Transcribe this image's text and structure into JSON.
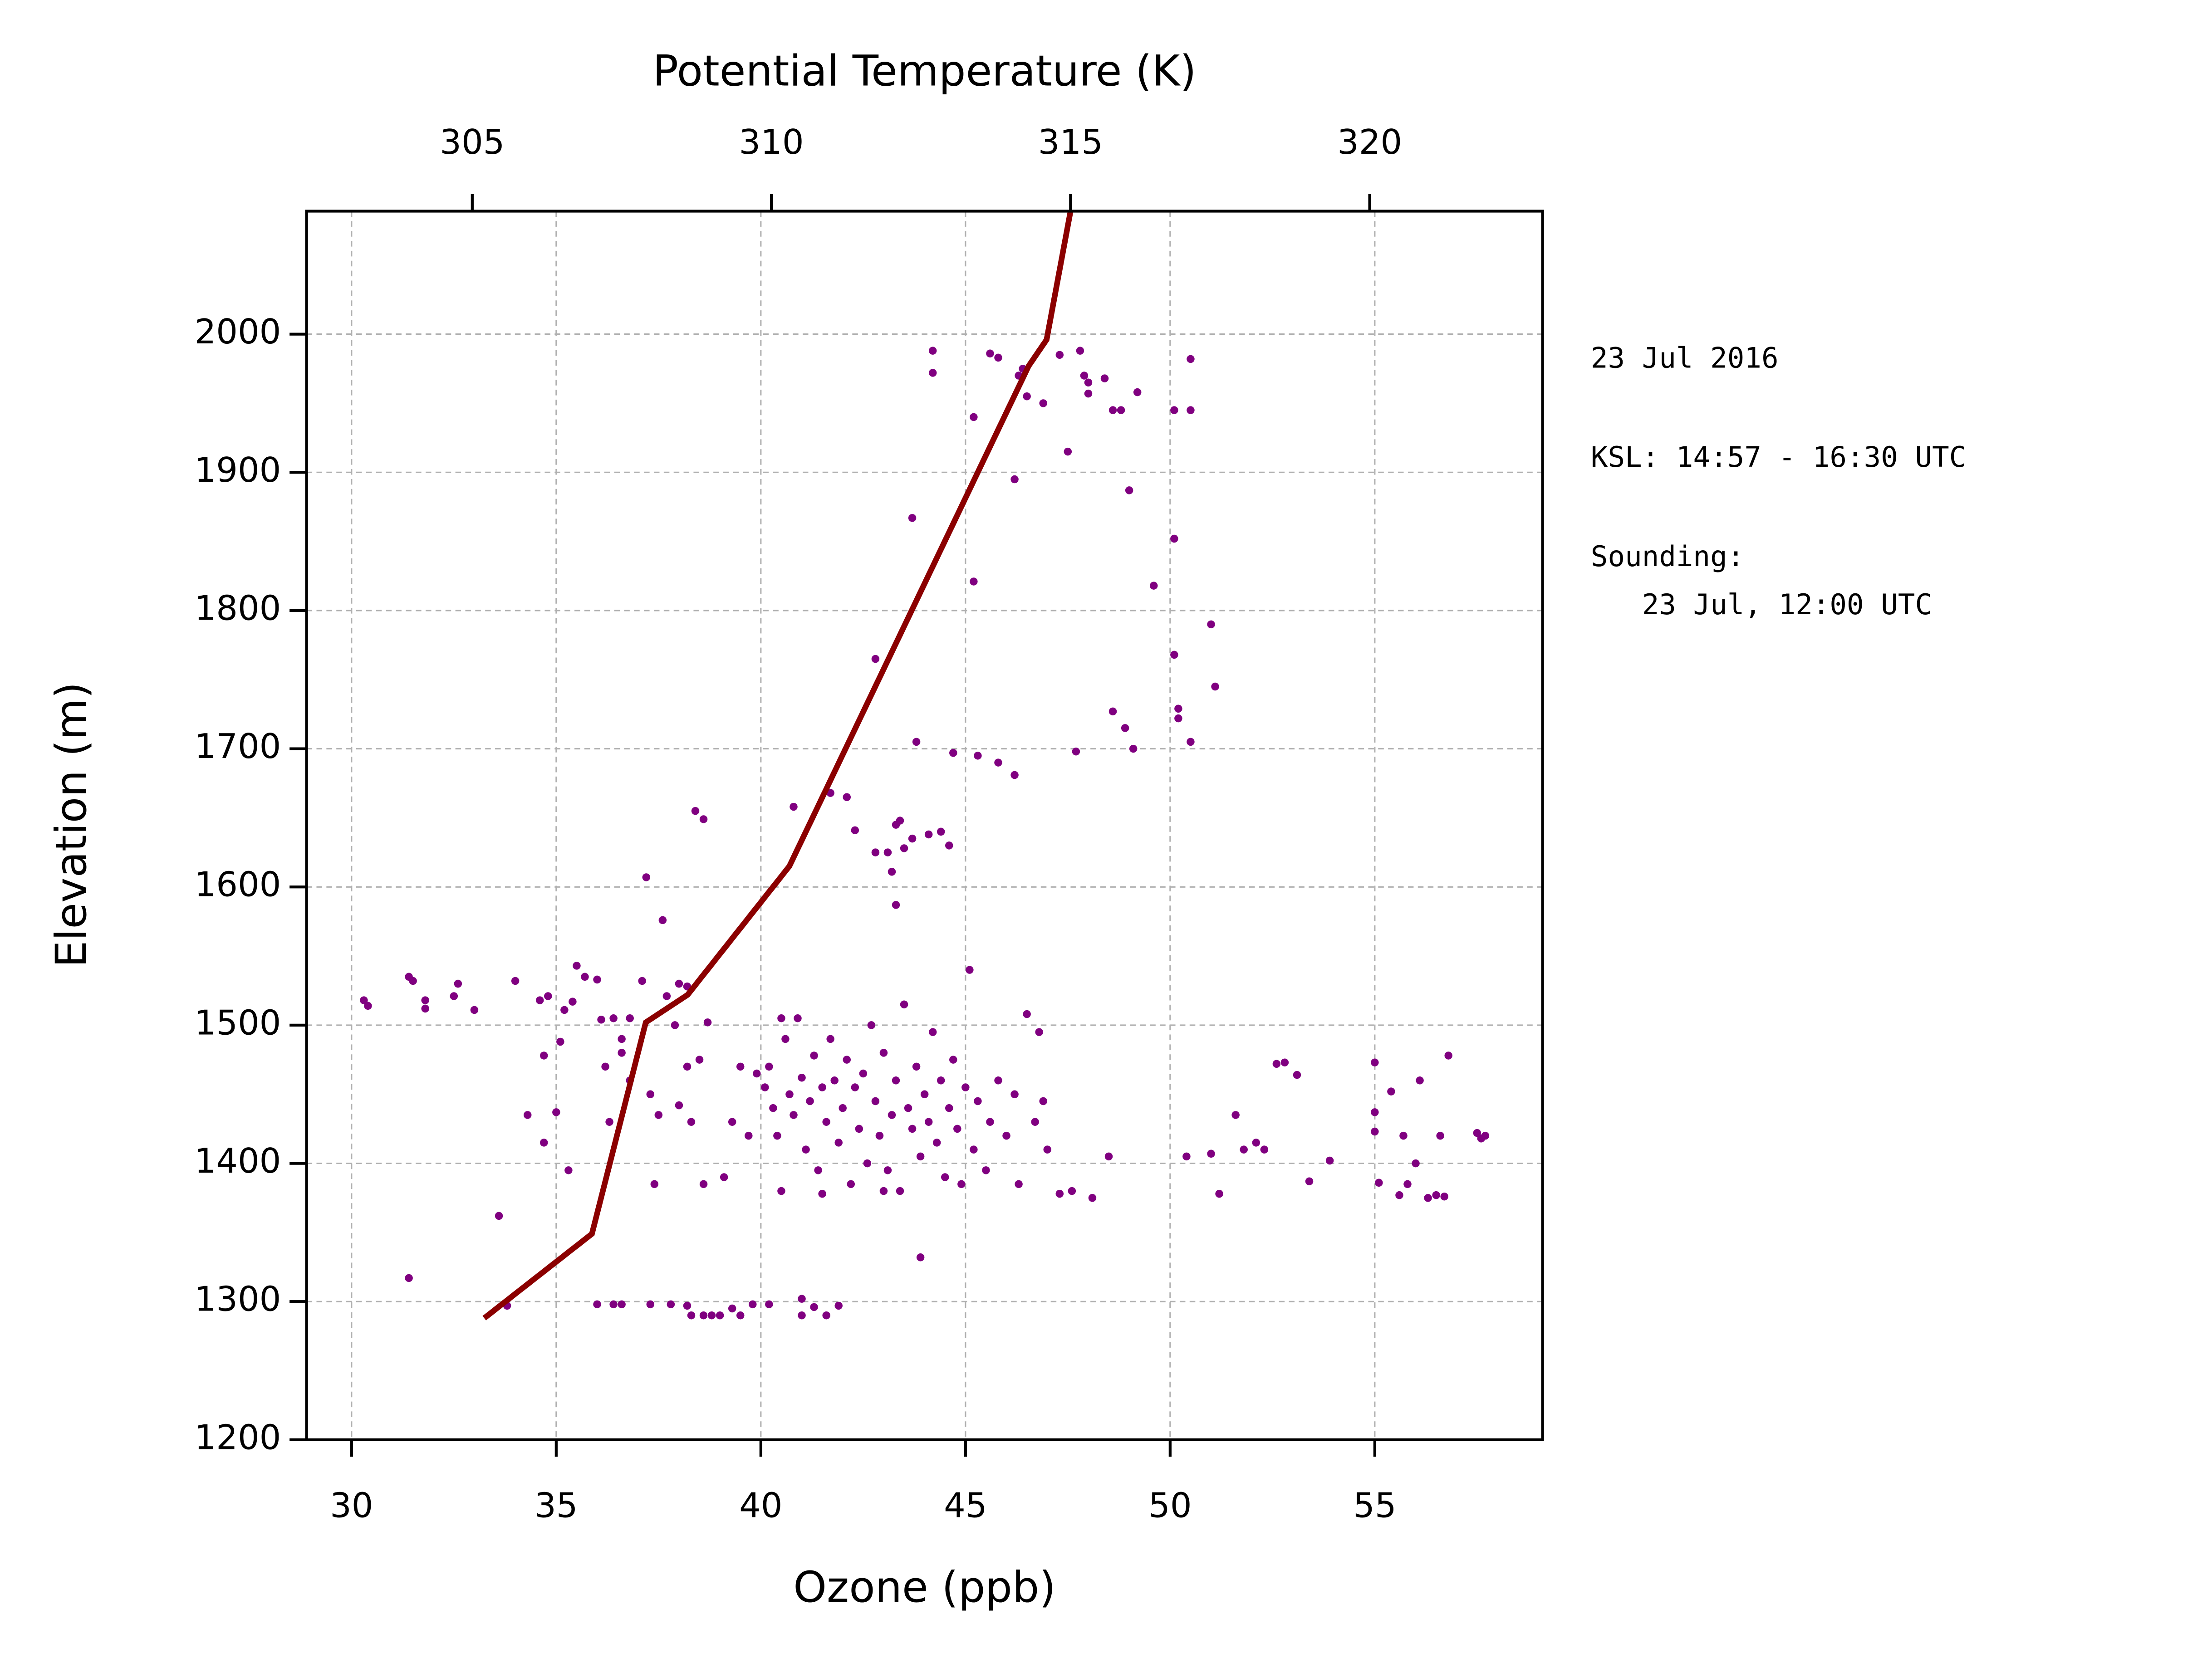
{
  "chart_data": [
    {
      "type": "scatter",
      "x_label": "Ozone (ppb)",
      "y_label": "Elevation (m)",
      "color": "#800080",
      "xlim": [
        28.9,
        59.1
      ],
      "xticks": [
        30,
        35,
        40,
        45,
        50,
        55
      ],
      "ylim": [
        1200,
        2089
      ],
      "yticks": [
        1200,
        1300,
        1400,
        1500,
        1600,
        1700,
        1800,
        1900,
        2000
      ],
      "grid": true,
      "annotations": [
        "23 Jul 2016",
        "KSL: 14:57 - 16:30 UTC",
        "Sounding:",
        "   23 Jul, 12:00 UTC"
      ],
      "x": [
        44.2,
        44.2,
        45.6,
        45.8,
        46.3,
        46.4,
        46.5,
        46.9,
        47.3,
        47.8,
        47.9,
        48.0,
        48.0,
        48.4,
        48.6,
        48.8,
        49.2,
        50.1,
        50.5,
        50.5,
        45.2,
        47.5,
        46.2,
        49.0,
        43.7,
        50.1,
        45.2,
        49.6,
        51.0,
        42.8,
        50.1,
        51.1,
        48.6,
        50.2,
        50.2,
        48.9,
        50.5,
        43.8,
        47.7,
        49.1,
        44.7,
        45.3,
        45.8,
        46.2,
        40.8,
        41.7,
        42.1,
        38.4,
        38.6,
        42.3,
        43.3,
        43.4,
        44.1,
        44.4,
        44.6,
        43.7,
        43.5,
        42.8,
        43.1,
        43.2,
        43.3,
        37.2,
        37.6,
        30.3,
        30.4,
        31.4,
        31.5,
        31.8,
        31.8,
        32.6,
        32.5,
        33.0,
        34.0,
        34.6,
        34.8,
        35.2,
        35.4,
        35.5,
        35.7,
        36.0,
        36.1,
        36.4,
        36.6,
        36.8,
        37.1,
        37.7,
        38.0,
        38.2,
        34.7,
        35.1,
        35.0,
        34.7,
        34.3,
        35.3,
        36.2,
        36.3,
        36.6,
        36.8,
        37.3,
        37.5,
        37.4,
        37.9,
        38.2,
        38.5,
        38.7,
        38.3,
        38.6,
        39.1,
        38.0,
        39.3,
        39.9,
        40.1,
        40.2,
        40.3,
        40.4,
        40.5,
        40.6,
        40.7,
        40.8,
        40.9,
        41.0,
        41.1,
        41.2,
        41.3,
        41.4,
        41.5,
        41.6,
        41.7,
        41.8,
        41.9,
        42.0,
        42.1,
        42.2,
        42.3,
        42.4,
        42.5,
        42.6,
        42.7,
        42.8,
        42.9,
        43.0,
        43.1,
        43.2,
        43.3,
        43.4,
        43.5,
        43.6,
        43.7,
        43.8,
        43.9,
        44.0,
        44.1,
        44.2,
        44.3,
        44.4,
        44.5,
        44.6,
        44.7,
        44.8,
        44.9,
        45.0,
        45.1,
        45.2,
        45.3,
        45.5,
        45.6,
        45.8,
        46.0,
        46.2,
        46.3,
        46.5,
        46.7,
        46.8,
        46.9,
        47.0,
        47.3,
        47.6,
        48.1,
        48.5,
        43.0,
        41.5,
        40.5,
        39.5,
        39.7,
        50.4,
        51.0,
        51.2,
        51.6,
        51.8,
        52.1,
        52.3,
        52.6,
        52.8,
        53.1,
        53.4,
        53.9,
        55.0,
        55.0,
        55.0,
        55.1,
        55.4,
        55.6,
        55.7,
        55.8,
        56.0,
        56.1,
        56.3,
        56.5,
        56.6,
        56.7,
        56.8,
        57.5,
        57.6,
        57.7,
        31.4,
        33.6,
        33.8,
        43.9,
        36.0,
        36.4,
        36.6,
        37.3,
        37.8,
        38.2,
        38.3,
        38.6,
        38.8,
        39.0,
        39.3,
        39.5,
        39.8,
        40.2,
        41.0,
        41.0,
        41.3,
        41.6,
        41.9
      ],
      "values": [
        1988,
        1972,
        1986,
        1983,
        1970,
        1975,
        1955,
        1950,
        1985,
        1988,
        1970,
        1965,
        1957,
        1968,
        1945,
        1945,
        1958,
        1945,
        1982,
        1945,
        1940,
        1915,
        1895,
        1887,
        1867,
        1852,
        1821,
        1818,
        1790,
        1765,
        1768,
        1745,
        1727,
        1729,
        1722,
        1715,
        1705,
        1705,
        1698,
        1700,
        1697,
        1695,
        1690,
        1681,
        1658,
        1668,
        1665,
        1655,
        1649,
        1641,
        1645,
        1648,
        1638,
        1640,
        1630,
        1635,
        1628,
        1625,
        1625,
        1611,
        1587,
        1607,
        1576,
        1518,
        1514,
        1535,
        1532,
        1518,
        1512,
        1530,
        1521,
        1511,
        1532,
        1518,
        1521,
        1511,
        1517,
        1543,
        1535,
        1533,
        1504,
        1505,
        1490,
        1505,
        1532,
        1521,
        1530,
        1528,
        1478,
        1488,
        1437,
        1415,
        1435,
        1395,
        1470,
        1430,
        1480,
        1460,
        1450,
        1435,
        1385,
        1500,
        1470,
        1475,
        1502,
        1430,
        1385,
        1390,
        1442,
        1430,
        1465,
        1455,
        1470,
        1440,
        1420,
        1380,
        1490,
        1450,
        1435,
        1505,
        1462,
        1410,
        1445,
        1478,
        1395,
        1455,
        1430,
        1490,
        1460,
        1415,
        1440,
        1475,
        1385,
        1455,
        1425,
        1465,
        1400,
        1500,
        1445,
        1420,
        1480,
        1395,
        1435,
        1460,
        1380,
        1515,
        1440,
        1425,
        1470,
        1405,
        1450,
        1430,
        1495,
        1415,
        1460,
        1390,
        1440,
        1475,
        1425,
        1385,
        1455,
        1540,
        1410,
        1445,
        1395,
        1430,
        1460,
        1420,
        1450,
        1385,
        1508,
        1430,
        1495,
        1445,
        1410,
        1378,
        1380,
        1375,
        1405,
        1380,
        1378,
        1505,
        1470,
        1420,
        1405,
        1407,
        1378,
        1435,
        1410,
        1415,
        1410,
        1472,
        1473,
        1464,
        1387,
        1402,
        1473,
        1437,
        1423,
        1386,
        1452,
        1377,
        1420,
        1385,
        1400,
        1460,
        1375,
        1377,
        1420,
        1376,
        1478,
        1422,
        1418,
        1420,
        1317,
        1362,
        1297,
        1332,
        1298,
        1298,
        1298,
        1298,
        1298,
        1297,
        1290,
        1290,
        1290,
        1290,
        1295,
        1290,
        1298,
        1298,
        1302,
        1290,
        1296,
        1290,
        1297
      ]
    },
    {
      "type": "line",
      "axis": "x2",
      "x_label": "Potential Temperature (K)",
      "color": "#8b0000",
      "xlim": [
        302.23,
        322.89
      ],
      "xticks": [
        305,
        310,
        315,
        320
      ],
      "ylim": [
        1200,
        2089
      ],
      "x": [
        305.2,
        307.0,
        307.9,
        308.6,
        310.3,
        314.3,
        314.6,
        315.0
      ],
      "values": [
        1288,
        1349,
        1502,
        1522,
        1615,
        1977,
        1996,
        2089
      ]
    }
  ]
}
